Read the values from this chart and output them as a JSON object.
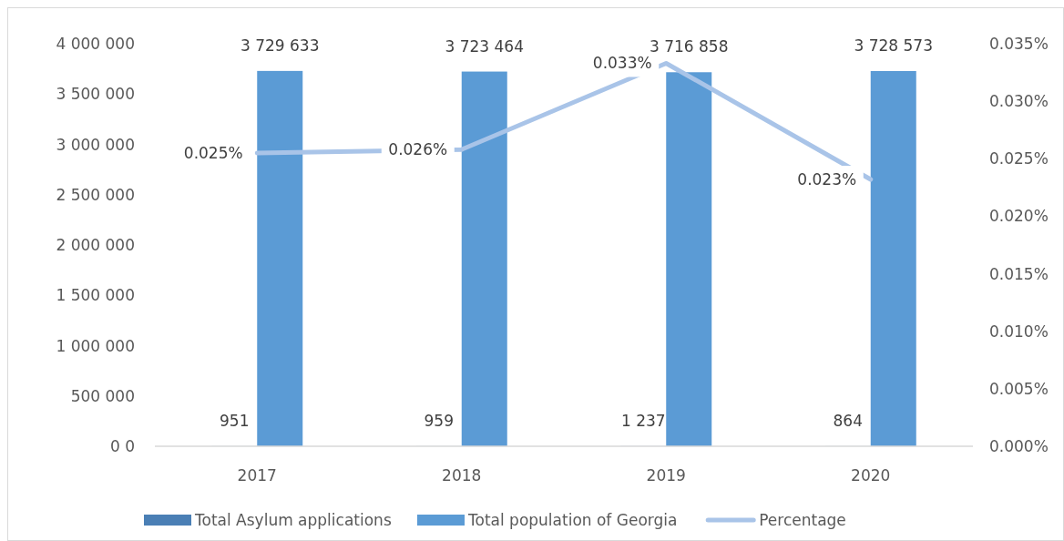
{
  "chart_data": {
    "type": "bar",
    "categories": [
      "2017",
      "2018",
      "2019",
      "2020"
    ],
    "series": [
      {
        "name": "Total Asylum applications",
        "color": "#4a7fb5",
        "values": [
          951,
          959,
          1237,
          864
        ],
        "value_labels": [
          "951",
          "959",
          "1 237",
          "864"
        ]
      },
      {
        "name": "Total population of Georgia",
        "color": "#5b9bd5",
        "values": [
          3729633,
          3723464,
          3716858,
          3728573
        ],
        "value_labels": [
          "3 729 633",
          "3 723 464",
          "3 716 858",
          "3 728 573"
        ]
      },
      {
        "name": "Percentage",
        "type": "line",
        "axis": "y2",
        "color": "#a9c4e8",
        "values": [
          0.0255,
          0.0258,
          0.0333,
          0.0232
        ],
        "value_labels": [
          "0.025%",
          "0.026%",
          "0.033%",
          "0.023%"
        ]
      }
    ],
    "ylim": [
      0,
      4000000
    ],
    "yticks": [
      {
        "value": 0,
        "label": "0 0"
      },
      {
        "value": 500000,
        "label": "500 000"
      },
      {
        "value": 1000000,
        "label": "1 000 000"
      },
      {
        "value": 1500000,
        "label": "1 500 000"
      },
      {
        "value": 2000000,
        "label": "2 000 000"
      },
      {
        "value": 2500000,
        "label": "2 500 000"
      },
      {
        "value": 3000000,
        "label": "3 000 000"
      },
      {
        "value": 3500000,
        "label": "3 500 000"
      },
      {
        "value": 4000000,
        "label": "4 000 000"
      }
    ],
    "y2lim": [
      0,
      0.035
    ],
    "y2ticks": [
      {
        "value": 0,
        "label": "0.000%"
      },
      {
        "value": 0.005,
        "label": "0.005%"
      },
      {
        "value": 0.01,
        "label": "0.010%"
      },
      {
        "value": 0.015,
        "label": "0.015%"
      },
      {
        "value": 0.02,
        "label": "0.020%"
      },
      {
        "value": 0.025,
        "label": "0.025%"
      },
      {
        "value": 0.03,
        "label": "0.030%"
      },
      {
        "value": 0.035,
        "label": "0.035%"
      }
    ],
    "grid": false,
    "legend": "bottom",
    "line_style": "solid"
  }
}
